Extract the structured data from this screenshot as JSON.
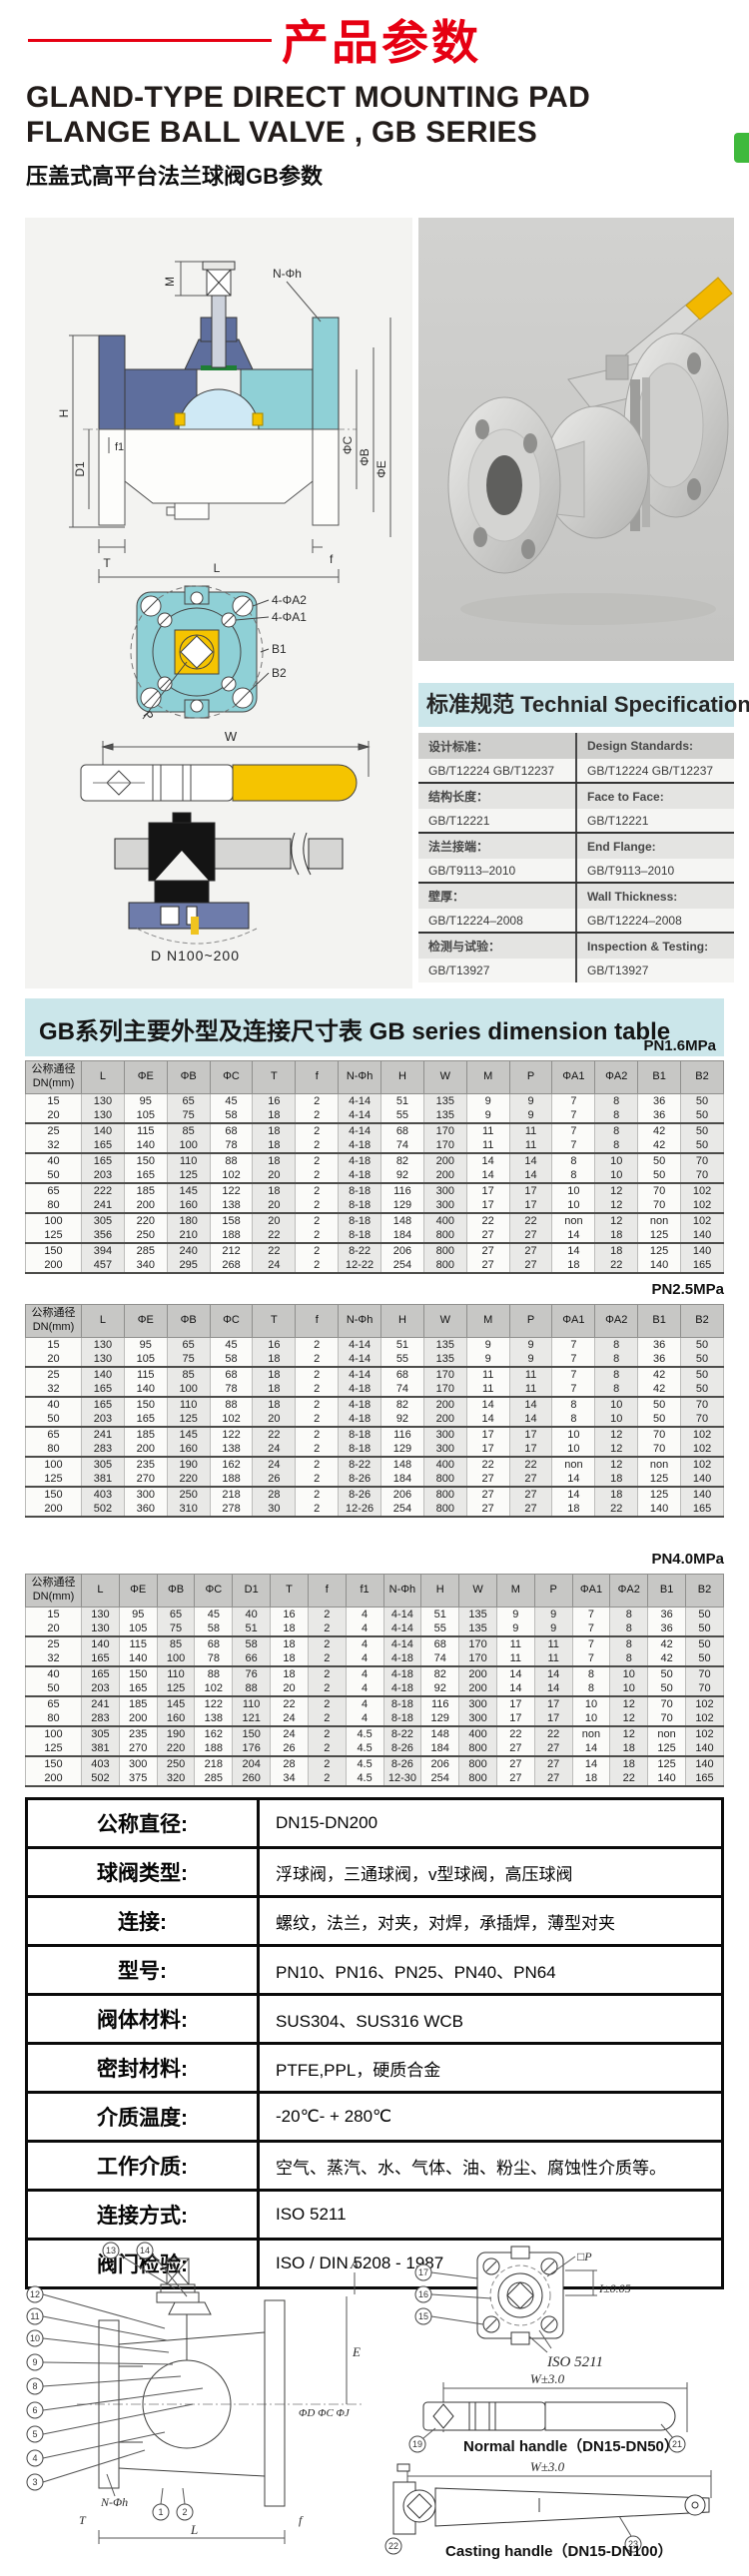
{
  "header": {
    "title": "产品参数"
  },
  "title": {
    "line1": "GLAND-TYPE DIRECT MOUNTING PAD",
    "line2": "FLANGE BALL VALVE , GB SERIES",
    "subtitle": "压盖式高平台法兰球阀GB参数"
  },
  "colors": {
    "accent_red": "#e60012",
    "band_blue": "#cbe6ea",
    "handle_yellow": "#f5c400",
    "body_slate": "#5e6e9d",
    "body_teal": "#8fd0d6"
  },
  "drawings": {
    "front": {
      "m": "M",
      "nphih": "N-Φh",
      "h": "H",
      "d1": "D1",
      "f1": "f1",
      "phic": "ΦC",
      "phib": "ΦB",
      "phie": "ΦE",
      "t": "T",
      "f": "f",
      "l": "L"
    },
    "top_view": {
      "a2": "4-ΦA2",
      "a1": "4-ΦA1",
      "b1": "B1",
      "b2": "B2",
      "p": "P"
    },
    "handle": {
      "w": "W"
    },
    "gearbox": {
      "caption": "D N100~200"
    }
  },
  "tech_spec": {
    "header": "标准规范 Technial Specification:",
    "rows": [
      {
        "cn_label": "设计标准：",
        "en_label": "Design Standards:",
        "cn_value": "GB/T12224  GB/T12237",
        "en_value": "GB/T12224  GB/T12237"
      },
      {
        "cn_label": "结构长度：",
        "en_label": "Face to Face:",
        "cn_value": "GB/T12221",
        "en_value": "GB/T12221"
      },
      {
        "cn_label": "法兰接端：",
        "en_label": "End Flange:",
        "cn_value": "GB/T9113–2010",
        "en_value": "GB/T9113–2010"
      },
      {
        "cn_label": "壁厚：",
        "en_label": "Wall Thickness:",
        "cn_value": "GB/T12224–2008",
        "en_value": "GB/T12224–2008"
      },
      {
        "cn_label": "检测与试验：",
        "en_label": "Inspection & Testing:",
        "cn_value": "GB/T13927",
        "en_value": "GB/T13927"
      }
    ]
  },
  "dimension_section": {
    "title": "GB系列主要外型及连接尺寸表 GB series dimension table",
    "tables": [
      {
        "pressure": "PN1.6MPa",
        "columns": [
          "公称通径\nDN(mm)",
          "L",
          "ΦE",
          "ΦB",
          "ΦC",
          "T",
          "f",
          "N-Φh",
          "H",
          "W",
          "M",
          "P",
          "ΦA1",
          "ΦA2",
          "B1",
          "B2"
        ],
        "rows": [
          [
            "15",
            "130",
            "95",
            "65",
            "45",
            "16",
            "2",
            "4-14",
            "51",
            "135",
            "9",
            "9",
            "7",
            "8",
            "36",
            "50"
          ],
          [
            "20",
            "130",
            "105",
            "75",
            "58",
            "18",
            "2",
            "4-14",
            "55",
            "135",
            "9",
            "9",
            "7",
            "8",
            "36",
            "50"
          ],
          [
            "25",
            "140",
            "115",
            "85",
            "68",
            "18",
            "2",
            "4-14",
            "68",
            "170",
            "11",
            "11",
            "7",
            "8",
            "42",
            "50"
          ],
          [
            "32",
            "165",
            "140",
            "100",
            "78",
            "18",
            "2",
            "4-18",
            "74",
            "170",
            "11",
            "11",
            "7",
            "8",
            "42",
            "50"
          ],
          [
            "40",
            "165",
            "150",
            "110",
            "88",
            "18",
            "2",
            "4-18",
            "82",
            "200",
            "14",
            "14",
            "8",
            "10",
            "50",
            "70"
          ],
          [
            "50",
            "203",
            "165",
            "125",
            "102",
            "20",
            "2",
            "4-18",
            "92",
            "200",
            "14",
            "14",
            "8",
            "10",
            "50",
            "70"
          ],
          [
            "65",
            "222",
            "185",
            "145",
            "122",
            "18",
            "2",
            "8-18",
            "116",
            "300",
            "17",
            "17",
            "10",
            "12",
            "70",
            "102"
          ],
          [
            "80",
            "241",
            "200",
            "160",
            "138",
            "20",
            "2",
            "8-18",
            "129",
            "300",
            "17",
            "17",
            "10",
            "12",
            "70",
            "102"
          ],
          [
            "100",
            "305",
            "220",
            "180",
            "158",
            "20",
            "2",
            "8-18",
            "148",
            "400",
            "22",
            "22",
            "non",
            "12",
            "non",
            "102"
          ],
          [
            "125",
            "356",
            "250",
            "210",
            "188",
            "22",
            "2",
            "8-18",
            "184",
            "800",
            "27",
            "27",
            "14",
            "18",
            "125",
            "140"
          ],
          [
            "150",
            "394",
            "285",
            "240",
            "212",
            "22",
            "2",
            "8-22",
            "206",
            "800",
            "27",
            "27",
            "14",
            "18",
            "125",
            "140"
          ],
          [
            "200",
            "457",
            "340",
            "295",
            "268",
            "24",
            "2",
            "12-22",
            "254",
            "800",
            "27",
            "27",
            "18",
            "22",
            "140",
            "165"
          ]
        ]
      },
      {
        "pressure": "PN2.5MPa",
        "columns": [
          "公称通径\nDN(mm)",
          "L",
          "ΦE",
          "ΦB",
          "ΦC",
          "T",
          "f",
          "N-Φh",
          "H",
          "W",
          "M",
          "P",
          "ΦA1",
          "ΦA2",
          "B1",
          "B2"
        ],
        "rows": [
          [
            "15",
            "130",
            "95",
            "65",
            "45",
            "16",
            "2",
            "4-14",
            "51",
            "135",
            "9",
            "9",
            "7",
            "8",
            "36",
            "50"
          ],
          [
            "20",
            "130",
            "105",
            "75",
            "58",
            "18",
            "2",
            "4-14",
            "55",
            "135",
            "9",
            "9",
            "7",
            "8",
            "36",
            "50"
          ],
          [
            "25",
            "140",
            "115",
            "85",
            "68",
            "18",
            "2",
            "4-14",
            "68",
            "170",
            "11",
            "11",
            "7",
            "8",
            "42",
            "50"
          ],
          [
            "32",
            "165",
            "140",
            "100",
            "78",
            "18",
            "2",
            "4-18",
            "74",
            "170",
            "11",
            "11",
            "7",
            "8",
            "42",
            "50"
          ],
          [
            "40",
            "165",
            "150",
            "110",
            "88",
            "18",
            "2",
            "4-18",
            "82",
            "200",
            "14",
            "14",
            "8",
            "10",
            "50",
            "70"
          ],
          [
            "50",
            "203",
            "165",
            "125",
            "102",
            "20",
            "2",
            "4-18",
            "92",
            "200",
            "14",
            "14",
            "8",
            "10",
            "50",
            "70"
          ],
          [
            "65",
            "241",
            "185",
            "145",
            "122",
            "22",
            "2",
            "8-18",
            "116",
            "300",
            "17",
            "17",
            "10",
            "12",
            "70",
            "102"
          ],
          [
            "80",
            "283",
            "200",
            "160",
            "138",
            "24",
            "2",
            "8-18",
            "129",
            "300",
            "17",
            "17",
            "10",
            "12",
            "70",
            "102"
          ],
          [
            "100",
            "305",
            "235",
            "190",
            "162",
            "24",
            "2",
            "8-22",
            "148",
            "400",
            "22",
            "22",
            "non",
            "12",
            "non",
            "102"
          ],
          [
            "125",
            "381",
            "270",
            "220",
            "188",
            "26",
            "2",
            "8-26",
            "184",
            "800",
            "27",
            "27",
            "14",
            "18",
            "125",
            "140"
          ],
          [
            "150",
            "403",
            "300",
            "250",
            "218",
            "28",
            "2",
            "8-26",
            "206",
            "800",
            "27",
            "27",
            "14",
            "18",
            "125",
            "140"
          ],
          [
            "200",
            "502",
            "360",
            "310",
            "278",
            "30",
            "2",
            "12-26",
            "254",
            "800",
            "27",
            "27",
            "18",
            "22",
            "140",
            "165"
          ]
        ]
      },
      {
        "pressure": "PN4.0MPa",
        "columns": [
          "公称通径\nDN(mm)",
          "L",
          "ΦE",
          "ΦB",
          "ΦC",
          "D1",
          "T",
          "f",
          "f1",
          "N-Φh",
          "H",
          "W",
          "M",
          "P",
          "ΦA1",
          "ΦA2",
          "B1",
          "B2"
        ],
        "rows": [
          [
            "15",
            "130",
            "95",
            "65",
            "45",
            "40",
            "16",
            "2",
            "4",
            "4-14",
            "51",
            "135",
            "9",
            "9",
            "7",
            "8",
            "36",
            "50"
          ],
          [
            "20",
            "130",
            "105",
            "75",
            "58",
            "51",
            "18",
            "2",
            "4",
            "4-14",
            "55",
            "135",
            "9",
            "9",
            "7",
            "8",
            "36",
            "50"
          ],
          [
            "25",
            "140",
            "115",
            "85",
            "68",
            "58",
            "18",
            "2",
            "4",
            "4-14",
            "68",
            "170",
            "11",
            "11",
            "7",
            "8",
            "42",
            "50"
          ],
          [
            "32",
            "165",
            "140",
            "100",
            "78",
            "66",
            "18",
            "2",
            "4",
            "4-18",
            "74",
            "170",
            "11",
            "11",
            "7",
            "8",
            "42",
            "50"
          ],
          [
            "40",
            "165",
            "150",
            "110",
            "88",
            "76",
            "18",
            "2",
            "4",
            "4-18",
            "82",
            "200",
            "14",
            "14",
            "8",
            "10",
            "50",
            "70"
          ],
          [
            "50",
            "203",
            "165",
            "125",
            "102",
            "88",
            "20",
            "2",
            "4",
            "4-18",
            "92",
            "200",
            "14",
            "14",
            "8",
            "10",
            "50",
            "70"
          ],
          [
            "65",
            "241",
            "185",
            "145",
            "122",
            "110",
            "22",
            "2",
            "4",
            "8-18",
            "116",
            "300",
            "17",
            "17",
            "10",
            "12",
            "70",
            "102"
          ],
          [
            "80",
            "283",
            "200",
            "160",
            "138",
            "121",
            "24",
            "2",
            "4",
            "8-18",
            "129",
            "300",
            "17",
            "17",
            "10",
            "12",
            "70",
            "102"
          ],
          [
            "100",
            "305",
            "235",
            "190",
            "162",
            "150",
            "24",
            "2",
            "4.5",
            "8-22",
            "148",
            "400",
            "22",
            "22",
            "non",
            "12",
            "non",
            "102"
          ],
          [
            "125",
            "381",
            "270",
            "220",
            "188",
            "176",
            "26",
            "2",
            "4.5",
            "8-26",
            "184",
            "800",
            "27",
            "27",
            "14",
            "18",
            "125",
            "140"
          ],
          [
            "150",
            "403",
            "300",
            "250",
            "218",
            "204",
            "28",
            "2",
            "4.5",
            "8-26",
            "206",
            "800",
            "27",
            "27",
            "14",
            "18",
            "125",
            "140"
          ],
          [
            "200",
            "502",
            "375",
            "320",
            "285",
            "260",
            "34",
            "2",
            "4.5",
            "12-30",
            "254",
            "800",
            "27",
            "27",
            "18",
            "22",
            "140",
            "165"
          ]
        ]
      }
    ]
  },
  "product_spec": {
    "rows": [
      {
        "label": "公称直径:",
        "value": "DN15-DN200"
      },
      {
        "label": "球阀类型:",
        "value": "浮球阀，三通球阀，v型球阀，高压球阀"
      },
      {
        "label": "连接:",
        "value": "螺纹，法兰，对夹，对焊，承插焊，薄型对夹"
      },
      {
        "label": "型号:",
        "value": "PN10、PN16、PN25、PN40、PN64"
      },
      {
        "label": "阀体材料:",
        "value": "SUS304、SUS316 WCB"
      },
      {
        "label": "密封材料:",
        "value": "PTFE,PPL，硬质合金"
      },
      {
        "label": "介质温度:",
        "value": "-20℃- + 280℃"
      },
      {
        "label": "工作介质:",
        "value": "空气、蒸汽、水、气体、油、粉尘、腐蚀性介质等。"
      },
      {
        "label": "连接方式:",
        "value": "ISO 5211"
      },
      {
        "label": "阀门检验:",
        "value": "ISO / DIN 5208 - 1987"
      }
    ]
  },
  "bottom_left": {
    "balloons": [
      "13",
      "14",
      "12",
      "11",
      "10",
      "9",
      "8",
      "6",
      "5",
      "4",
      "3",
      "1",
      "2"
    ],
    "labels": {
      "a": "A",
      "e": "E",
      "phis": "ΦD ΦC ΦJ",
      "nphih": "N-Φh",
      "t": "T",
      "f": "f",
      "l": "L"
    }
  },
  "bottom_right": {
    "pad": {
      "p": "□P",
      "i": "I±0.05",
      "iso": "ISO 5211",
      "balloons": [
        "17",
        "16",
        "15"
      ]
    },
    "normal": {
      "dim": "W±3.0",
      "caption": "Normal handle（DN15-DN50）",
      "balloons": [
        "19",
        "21"
      ]
    },
    "casting": {
      "dim": "W±3.0",
      "caption": "Casting handle（DN15-DN100）",
      "balloons": [
        "22",
        "23"
      ]
    }
  }
}
